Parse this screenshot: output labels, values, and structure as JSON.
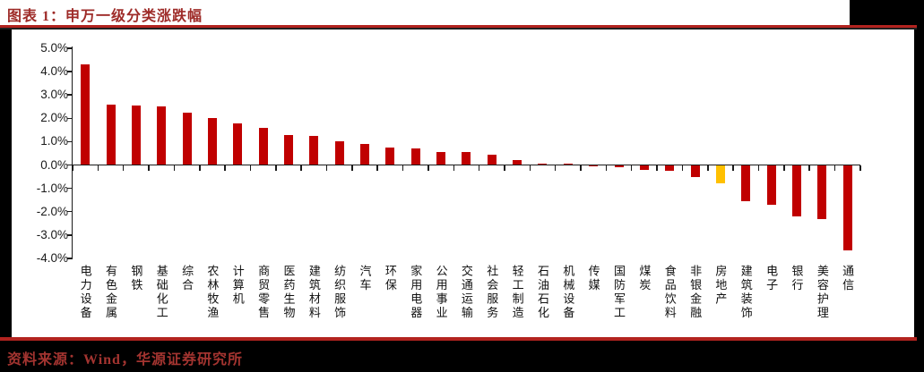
{
  "header": {
    "title": "图表 1：申万一级分类涨跌幅"
  },
  "footer": {
    "source": "资料来源：Wind，华源证券研究所"
  },
  "colors": {
    "bar_red": "#c00000",
    "bar_highlight_gold": "#ffc000",
    "rule_red": "#b2231f",
    "title_red": "#9e2b28",
    "source_red": "#a33430",
    "axis_black": "#1a1a1a",
    "surround_black": "#000000",
    "page_white": "#ffffff"
  },
  "chart_data": {
    "type": "bar",
    "title": "申万一级分类涨跌幅",
    "unit": "percent",
    "ylim": [
      -4.0,
      5.0
    ],
    "ytick_step": 1.0,
    "ytick_labels": [
      "5.0%",
      "4.0%",
      "3.0%",
      "2.0%",
      "1.0%",
      "0.0%",
      "-1.0%",
      "-2.0%",
      "-3.0%",
      "-4.0%"
    ],
    "grid": false,
    "legend": "none",
    "bar_color": "#c00000",
    "highlight_category": "房地产",
    "highlight_color": "#ffc000",
    "categories": [
      "电力设备",
      "有色金属",
      "钢铁",
      "基础化工",
      "综合",
      "农林牧渔",
      "计算机",
      "商贸零售",
      "医药生物",
      "建筑材料",
      "纺织服饰",
      "汽车",
      "环保",
      "家用电器",
      "公用事业",
      "交通运输",
      "社会服务",
      "轻工制造",
      "石油石化",
      "机械设备",
      "传媒",
      "国防军工",
      "煤炭",
      "食品饮料",
      "非银金融",
      "房地产",
      "建筑装饰",
      "电子",
      "银行",
      "美容护理",
      "通信"
    ],
    "values": [
      4.3,
      2.6,
      2.55,
      2.5,
      2.25,
      2.0,
      1.8,
      1.6,
      1.3,
      1.25,
      1.0,
      0.9,
      0.75,
      0.7,
      0.55,
      0.55,
      0.45,
      0.2,
      0.06,
      0.04,
      -0.03,
      -0.08,
      -0.2,
      -0.25,
      -0.5,
      -0.8,
      -1.55,
      -1.7,
      -2.2,
      -2.3,
      -3.65
    ]
  }
}
